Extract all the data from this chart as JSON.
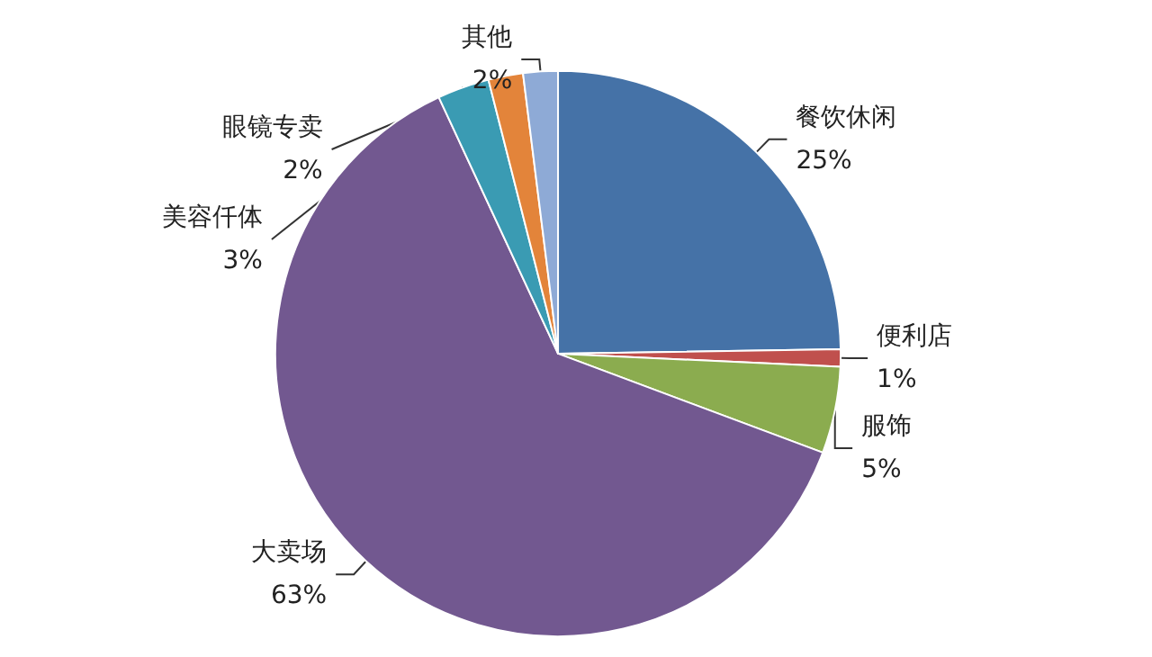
{
  "chart_data": {
    "type": "pie",
    "categories": [
      "餐饮休闲",
      "便利店",
      "服饰",
      "大卖场",
      "美容仟体",
      "眼镜专卖",
      "其他"
    ],
    "values": [
      25,
      1,
      5,
      63,
      3,
      2,
      2
    ],
    "colors": [
      "#4572a7",
      "#c0504d",
      "#8bac4f",
      "#725890",
      "#3a9bb3",
      "#e3843a",
      "#8eaad6"
    ],
    "value_labels": [
      "25%",
      "1%",
      "5%",
      "63%",
      "3%",
      "2%",
      "2%"
    ],
    "legend": false
  }
}
